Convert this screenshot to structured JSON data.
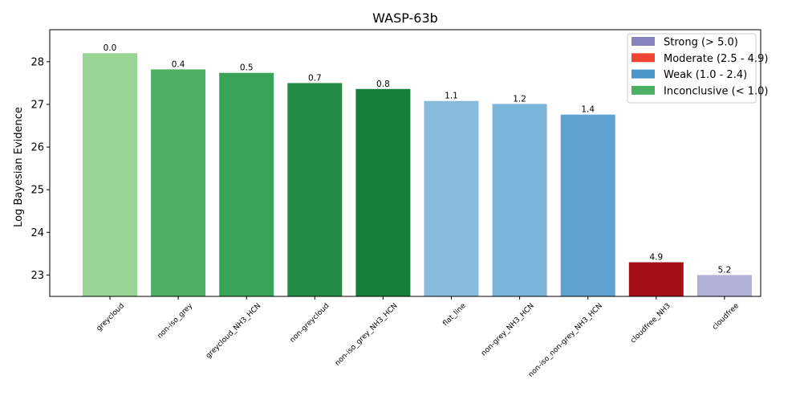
{
  "chart_data": {
    "type": "bar",
    "title": "WASP-63b",
    "xlabel": "",
    "ylabel": "Log Bayesian Evidence",
    "ylim": [
      22.5,
      28.75
    ],
    "yticks": [
      23,
      24,
      25,
      26,
      27,
      28
    ],
    "grid": false,
    "legend_position": "top-right",
    "categories": [
      "greycloud",
      "non-iso_grey",
      "greycloud_NH3_HCN",
      "non-greycloud",
      "non-iso_grey_NH3_HCN",
      "flat_line",
      "non-grey_NH3_HCN",
      "non-iso_non-grey_NH3_HCN",
      "cloudfree_NH3",
      "cloudfree"
    ],
    "values": [
      28.2,
      27.82,
      27.74,
      27.5,
      27.36,
      27.08,
      27.01,
      26.76,
      23.3,
      23.0
    ],
    "data_labels": [
      "0.0",
      "0.4",
      "0.5",
      "0.7",
      "0.8",
      "1.1",
      "1.2",
      "1.4",
      "4.9",
      "5.2"
    ],
    "bar_colors": [
      "#98d594",
      "#4bb062",
      "#3aa357",
      "#238b45",
      "#187e3b",
      "#86bbdb",
      "#7ab5d9",
      "#5fa4d0",
      "#a50f15",
      "#b0afd5"
    ],
    "legend": [
      {
        "label": "Strong (> 5.0)",
        "color": "#8683bd"
      },
      {
        "label": "Moderate (2.5 - 4.9)",
        "color": "#f14432"
      },
      {
        "label": "Weak (1.0 - 2.4)",
        "color": "#4a98c9"
      },
      {
        "label": "Inconclusive (< 1.0)",
        "color": "#4bb062"
      }
    ]
  }
}
